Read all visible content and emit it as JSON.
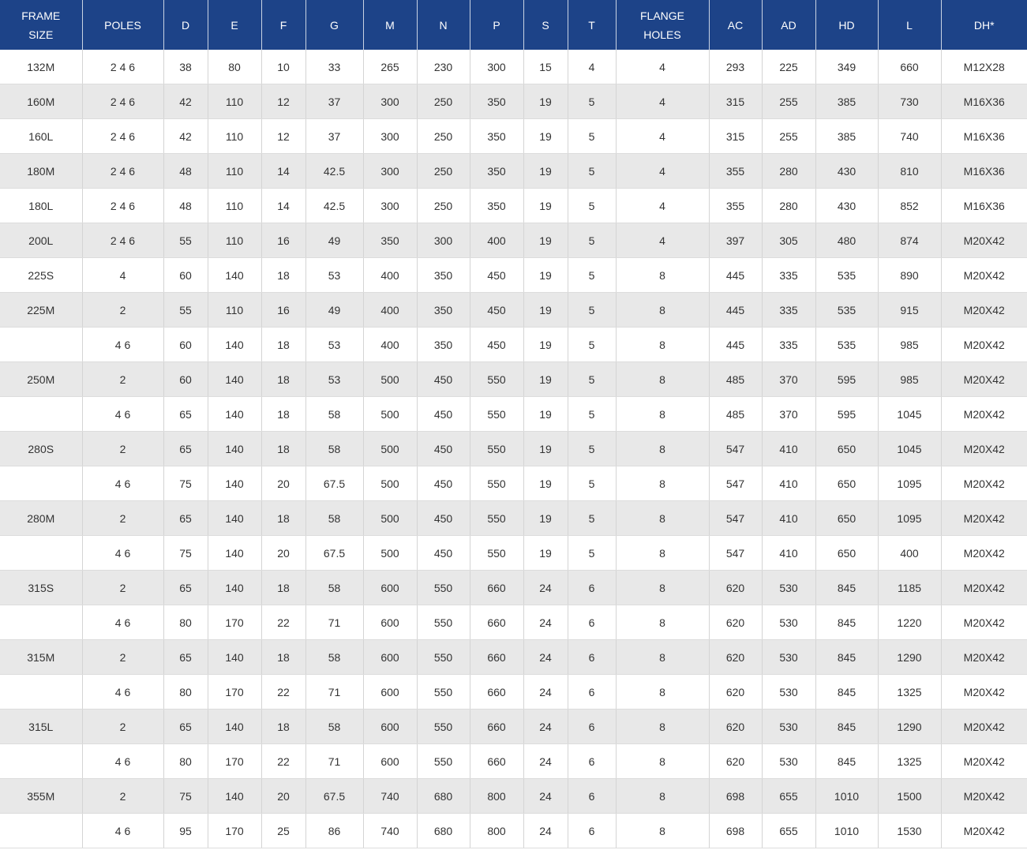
{
  "table": {
    "headers": [
      "FRAME\nSIZE",
      "POLES",
      "D",
      "E",
      "F",
      "G",
      "M",
      "N",
      "P",
      "S",
      "T",
      "FLANGE\nHOLES",
      "AC",
      "AD",
      "HD",
      "L",
      "DH*"
    ],
    "rows": [
      [
        "132M",
        "2 4 6",
        38,
        80,
        10,
        33,
        265,
        230,
        300,
        15,
        4,
        4,
        293,
        225,
        349,
        660,
        "M12X28"
      ],
      [
        "160M",
        "2 4 6",
        42,
        110,
        12,
        37,
        300,
        250,
        350,
        19,
        5,
        4,
        315,
        255,
        385,
        730,
        "M16X36"
      ],
      [
        "160L",
        "2 4 6",
        42,
        110,
        12,
        37,
        300,
        250,
        350,
        19,
        5,
        4,
        315,
        255,
        385,
        740,
        "M16X36"
      ],
      [
        "180M",
        "2 4 6",
        48,
        110,
        14,
        42.5,
        300,
        250,
        350,
        19,
        5,
        4,
        355,
        280,
        430,
        810,
        "M16X36"
      ],
      [
        "180L",
        "2 4 6",
        48,
        110,
        14,
        42.5,
        300,
        250,
        350,
        19,
        5,
        4,
        355,
        280,
        430,
        852,
        "M16X36"
      ],
      [
        "200L",
        "2 4 6",
        55,
        110,
        16,
        49,
        350,
        300,
        400,
        19,
        5,
        4,
        397,
        305,
        480,
        874,
        "M20X42"
      ],
      [
        "225S",
        "4",
        60,
        140,
        18,
        53,
        400,
        350,
        450,
        19,
        5,
        8,
        445,
        335,
        535,
        890,
        "M20X42"
      ],
      [
        "225M",
        "2",
        55,
        110,
        16,
        49,
        400,
        350,
        450,
        19,
        5,
        8,
        445,
        335,
        535,
        915,
        "M20X42"
      ],
      [
        null,
        "4 6",
        60,
        140,
        18,
        53,
        400,
        350,
        450,
        19,
        5,
        8,
        445,
        335,
        535,
        985,
        "M20X42"
      ],
      [
        "250M",
        "2",
        60,
        140,
        18,
        53,
        500,
        450,
        550,
        19,
        5,
        8,
        485,
        370,
        595,
        985,
        "M20X42"
      ],
      [
        null,
        "4 6",
        65,
        140,
        18,
        58,
        500,
        450,
        550,
        19,
        5,
        8,
        485,
        370,
        595,
        1045,
        "M20X42"
      ],
      [
        "280S",
        "2",
        65,
        140,
        18,
        58,
        500,
        450,
        550,
        19,
        5,
        8,
        547,
        410,
        650,
        1045,
        "M20X42"
      ],
      [
        null,
        "4 6",
        75,
        140,
        20,
        67.5,
        500,
        450,
        550,
        19,
        5,
        8,
        547,
        410,
        650,
        1095,
        "M20X42"
      ],
      [
        "280M",
        "2",
        65,
        140,
        18,
        58,
        500,
        450,
        550,
        19,
        5,
        8,
        547,
        410,
        650,
        1095,
        "M20X42"
      ],
      [
        null,
        "4 6",
        75,
        140,
        20,
        67.5,
        500,
        450,
        550,
        19,
        5,
        8,
        547,
        410,
        650,
        400,
        "M20X42"
      ],
      [
        "315S",
        "2",
        65,
        140,
        18,
        58,
        600,
        550,
        660,
        24,
        6,
        8,
        620,
        530,
        845,
        1185,
        "M20X42"
      ],
      [
        null,
        "4 6",
        80,
        170,
        22,
        71,
        600,
        550,
        660,
        24,
        6,
        8,
        620,
        530,
        845,
        1220,
        "M20X42"
      ],
      [
        "315M",
        "2",
        65,
        140,
        18,
        58,
        600,
        550,
        660,
        24,
        6,
        8,
        620,
        530,
        845,
        1290,
        "M20X42"
      ],
      [
        null,
        "4 6",
        80,
        170,
        22,
        71,
        600,
        550,
        660,
        24,
        6,
        8,
        620,
        530,
        845,
        1325,
        "M20X42"
      ],
      [
        "315L",
        "2",
        65,
        140,
        18,
        58,
        600,
        550,
        660,
        24,
        6,
        8,
        620,
        530,
        845,
        1290,
        "M20X42"
      ],
      [
        null,
        "4 6",
        80,
        170,
        22,
        71,
        600,
        550,
        660,
        24,
        6,
        8,
        620,
        530,
        845,
        1325,
        "M20X42"
      ],
      [
        "355M",
        "2",
        75,
        140,
        20,
        67.5,
        740,
        680,
        800,
        24,
        6,
        8,
        698,
        655,
        1010,
        1500,
        "M20X42"
      ],
      [
        null,
        "4 6",
        95,
        170,
        25,
        86,
        740,
        680,
        800,
        24,
        6,
        8,
        698,
        655,
        1010,
        1530,
        "M20X42"
      ]
    ]
  }
}
